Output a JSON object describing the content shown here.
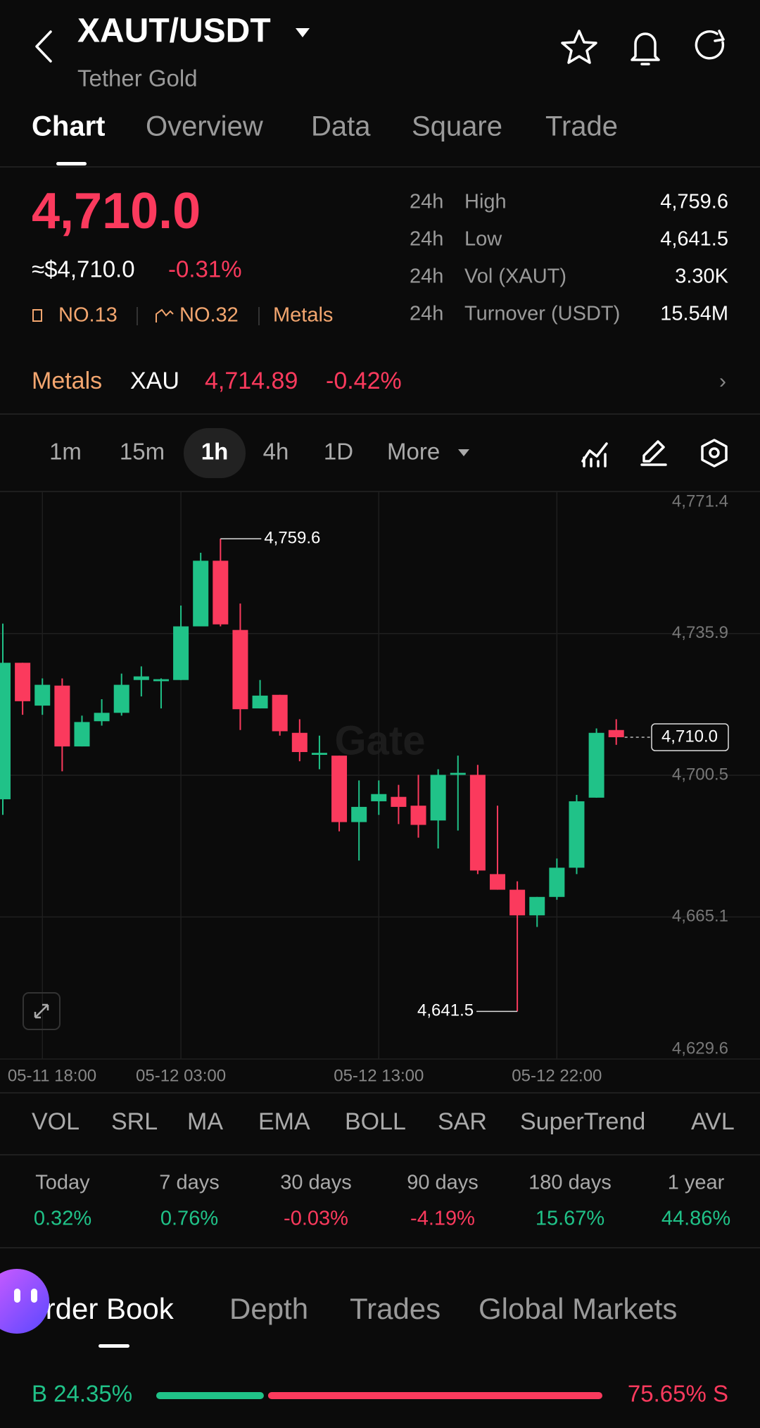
{
  "header": {
    "title": "XAUT/USDT",
    "subtitle": "Tether Gold"
  },
  "tabs": {
    "items": [
      "Chart",
      "Overview",
      "Data",
      "Square",
      "Trade"
    ],
    "active": 0
  },
  "price": {
    "last": "4,710.0",
    "usd": "≈$4,710.0",
    "change": "-0.31%"
  },
  "badges": [
    "NO.13",
    "NO.32",
    "Metals"
  ],
  "stats": [
    {
      "period": "24h",
      "label": "High",
      "value": "4,759.6"
    },
    {
      "period": "24h",
      "label": "Low",
      "value": "4,641.5"
    },
    {
      "period": "24h",
      "label": "Vol (XAUT)",
      "value": "3.30K"
    },
    {
      "period": "24h",
      "label": "Turnover (USDT)",
      "value": "15.54M"
    }
  ],
  "index_row": {
    "sector": "Metals",
    "symbol": "XAU",
    "price": "4,714.89",
    "change": "-0.42%"
  },
  "intervals": {
    "items": [
      "1m",
      "15m",
      "1h",
      "4h",
      "1D",
      "More"
    ],
    "active": 2
  },
  "chart_data": {
    "type": "candlestick",
    "categories": [
      null,
      null,
      "05-11 18:00",
      null,
      null,
      null,
      null,
      null,
      null,
      "05-12 03:00",
      null,
      null,
      null,
      null,
      null,
      null,
      null,
      null,
      null,
      "05-12 13:00",
      null,
      null,
      null,
      null,
      null,
      null,
      null,
      null,
      "05-12 22:00",
      null,
      null,
      null
    ],
    "open": [
      4694.5,
      4728.6,
      4717.9,
      4722.9,
      4707.7,
      4714.0,
      4716.1,
      4724.3,
      4724.0,
      4724.3,
      4737.7,
      4754.1,
      4736.8,
      4717.2,
      4720.6,
      4711.1,
      4705.6,
      4705.4,
      4688.8,
      4694.0,
      4695.1,
      4692.9,
      4689.2,
      4700.6,
      4700.6,
      4675.8,
      4671.9,
      4665.5,
      4670.1,
      4677.4,
      4694.9,
      4711.8
    ],
    "high": [
      4738.4,
      4728.6,
      4724.7,
      4724.7,
      4715.4,
      4719.5,
      4725.9,
      4727.7,
      4724.7,
      4742.9,
      4756.1,
      4759.6,
      4743.4,
      4724.3,
      4720.6,
      4714.5,
      4710.4,
      4705.4,
      4699.2,
      4699.2,
      4698.1,
      4700.6,
      4702.0,
      4705.4,
      4703.1,
      4692.9,
      4674.0,
      4670.1,
      4679.7,
      4695.6,
      4712.2,
      4714.5
    ],
    "low": [
      4690.6,
      4715.6,
      4715.6,
      4701.5,
      4707.7,
      4712.9,
      4715.4,
      4720.2,
      4717.2,
      4724.3,
      4737.7,
      4737.7,
      4711.8,
      4717.2,
      4710.4,
      4704.0,
      4702.0,
      4686.5,
      4679.2,
      4690.6,
      4688.3,
      4684.9,
      4682.2,
      4686.7,
      4675.8,
      4671.9,
      4641.5,
      4662.6,
      4669.4,
      4675.8,
      4694.9,
      4708.1
    ],
    "close": [
      4728.6,
      4719.0,
      4723.1,
      4707.7,
      4713.8,
      4716.1,
      4723.1,
      4725.2,
      4724.5,
      4737.7,
      4754.1,
      4738.2,
      4717.0,
      4720.4,
      4711.5,
      4706.3,
      4706.1,
      4688.8,
      4692.6,
      4695.8,
      4692.6,
      4688.1,
      4700.6,
      4701.1,
      4676.7,
      4671.9,
      4665.5,
      4670.1,
      4677.4,
      4694.0,
      4711.1,
      4710.0
    ],
    "up_color": "#20c288",
    "down_color": "#fb3a5d",
    "ylim": [
      4629.6,
      4771.4
    ],
    "yticks": [
      {
        "value": 4629.6,
        "label": "4,629.6"
      },
      {
        "value": 4665.1,
        "label": "4,665.1"
      },
      {
        "value": 4700.5,
        "label": "4,700.5"
      },
      {
        "value": 4735.9,
        "label": "4,735.9"
      },
      {
        "value": 4771.4,
        "label": "4,771.4"
      }
    ],
    "grid": true,
    "annotations": [
      {
        "value": 4759.6,
        "label": "4,759.6"
      },
      {
        "value": 4641.5,
        "label": "4,641.5"
      }
    ],
    "last_price": {
      "value": 4710.0,
      "label": "4,710.0"
    },
    "watermark": "Gate"
  },
  "indicators": [
    "VOL",
    "SRL",
    "MA",
    "EMA",
    "BOLL",
    "SAR",
    "SuperTrend",
    "AVL"
  ],
  "performance": [
    {
      "period": "Today",
      "change": "0.32%"
    },
    {
      "period": "7 days",
      "change": "0.76%"
    },
    {
      "period": "30 days",
      "change": "-0.03%"
    },
    {
      "period": "90 days",
      "change": "-4.19%"
    },
    {
      "period": "180 days",
      "change": "15.67%"
    },
    {
      "period": "1 year",
      "change": "44.86%"
    }
  ],
  "book_tabs": {
    "items": [
      "Order Book",
      "Depth",
      "Trades",
      "Global Markets"
    ],
    "active": 0
  },
  "order_ratio": {
    "buy": {
      "value": 24.35,
      "label": "B 24.35%"
    },
    "sell": {
      "value": 75.65,
      "label": "75.65% S"
    }
  }
}
